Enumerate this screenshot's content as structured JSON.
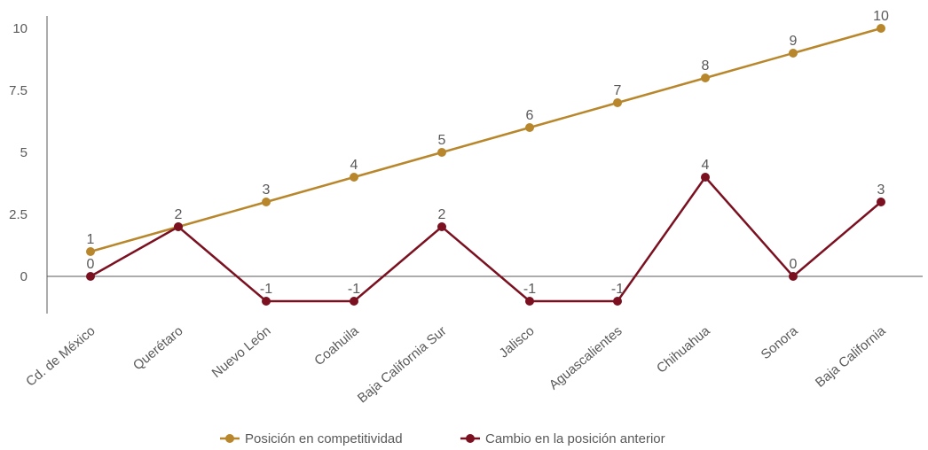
{
  "chart_data": {
    "type": "line",
    "title": "",
    "xlabel": "",
    "ylabel": "",
    "categories": [
      "Cd. de México",
      "Querétaro",
      "Nuevo León",
      "Coahuila",
      "Baja California Sur",
      "Jalisco",
      "Aguascalientes",
      "Chihuahua",
      "Sonora",
      "Baja California"
    ],
    "y_ticks": [
      "10",
      "7.5",
      "5",
      "2.5",
      "0"
    ],
    "y_tick_values": [
      10,
      7.5,
      5,
      2.5,
      0
    ],
    "ylim": [
      -1.5,
      10
    ],
    "grid": false,
    "legend_position": "bottom",
    "series": [
      {
        "name": "Posición en competitividad",
        "color": "#B8862B",
        "values": [
          1,
          2,
          3,
          4,
          5,
          6,
          7,
          8,
          9,
          10
        ],
        "labels": [
          "1",
          "2",
          "3",
          "4",
          "5",
          "6",
          "7",
          "8",
          "9",
          "10"
        ]
      },
      {
        "name": "Cambio en la posición anterior",
        "color": "#7A1020",
        "values": [
          0,
          2,
          -1,
          -1,
          2,
          -1,
          -1,
          4,
          0,
          3
        ],
        "labels": [
          "0",
          "",
          "-1",
          "-1",
          "2",
          "-1",
          "-1",
          "4",
          "0",
          "3"
        ]
      }
    ]
  }
}
